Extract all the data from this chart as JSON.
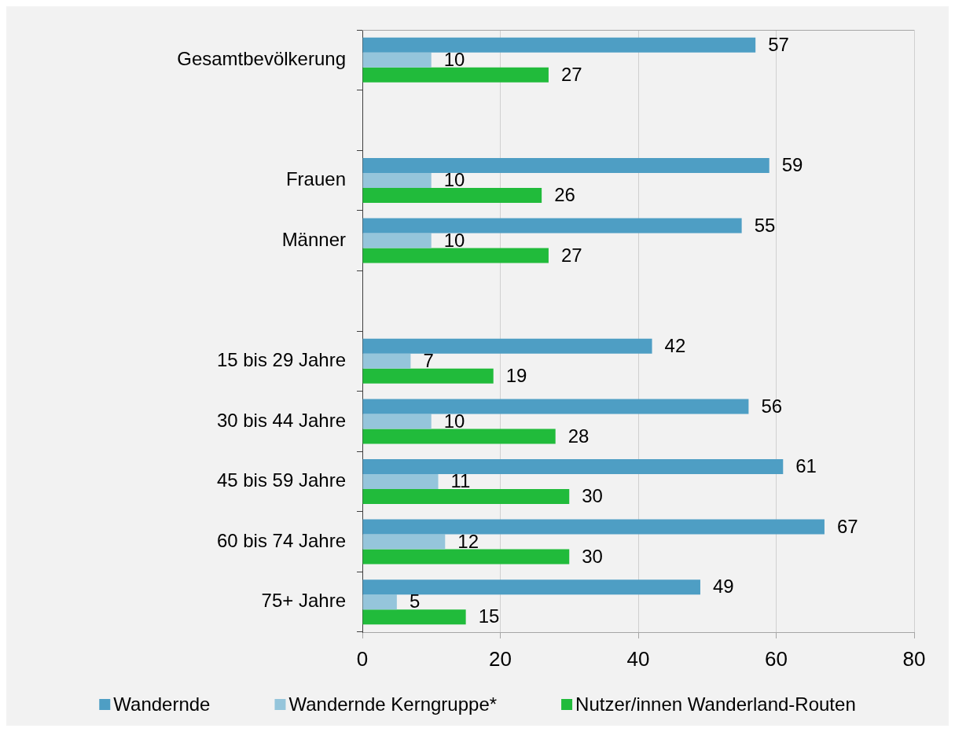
{
  "chart_data": {
    "type": "bar",
    "orientation": "horizontal",
    "categories": [
      "Gesamtbevölkerung",
      null,
      "Frauen",
      "Männer",
      null,
      "15 bis 29 Jahre",
      "30 bis 44 Jahre",
      "45 bis 59 Jahre",
      "60 bis 74 Jahre",
      "75+ Jahre"
    ],
    "series": [
      {
        "name": "Wandernde",
        "color": "#4e9ec4",
        "values": [
          57,
          null,
          59,
          55,
          null,
          42,
          56,
          61,
          67,
          49
        ]
      },
      {
        "name": "Wandernde Kerngruppe*",
        "color": "#95c5db",
        "values": [
          10,
          null,
          10,
          10,
          null,
          7,
          10,
          11,
          12,
          5
        ]
      },
      {
        "name": "Nutzer/innen Wanderland-Routen",
        "color": "#21bb3b",
        "values": [
          27,
          null,
          26,
          27,
          null,
          19,
          28,
          30,
          30,
          15
        ]
      }
    ],
    "xlim": [
      0,
      80
    ],
    "xticks": [
      0,
      20,
      40,
      60,
      80
    ],
    "grid": "x",
    "legend": "bottom",
    "data_labels": true
  }
}
